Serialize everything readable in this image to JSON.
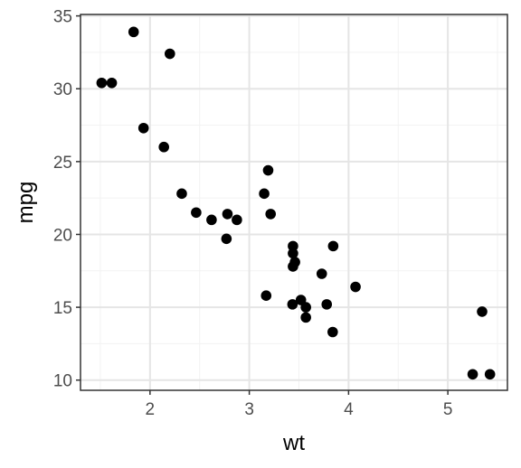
{
  "chart_data": {
    "type": "scatter",
    "xlabel": "wt",
    "ylabel": "mpg",
    "xlim": [
      1.3,
      5.6
    ],
    "ylim": [
      9.3,
      35.1
    ],
    "x_ticks": [
      2,
      3,
      4,
      5
    ],
    "y_ticks": [
      10,
      15,
      20,
      25,
      30,
      35
    ],
    "x_tick_labels": [
      "2",
      "3",
      "4",
      "5"
    ],
    "y_tick_labels": [
      "10",
      "15",
      "20",
      "25",
      "30",
      "35"
    ],
    "grid": true,
    "legend": "none",
    "colors": {
      "point": "#000000",
      "panel_border": "#333333",
      "grid_major": "#e5e5e5",
      "grid_minor": "#f2f2f2",
      "tick_text": "#4d4d4d",
      "axis_title": "#000000"
    },
    "points": [
      {
        "x": 2.62,
        "y": 21.0
      },
      {
        "x": 2.875,
        "y": 21.0
      },
      {
        "x": 2.32,
        "y": 22.8
      },
      {
        "x": 3.215,
        "y": 21.4
      },
      {
        "x": 3.44,
        "y": 18.7
      },
      {
        "x": 3.46,
        "y": 18.1
      },
      {
        "x": 3.57,
        "y": 14.3
      },
      {
        "x": 3.19,
        "y": 24.4
      },
      {
        "x": 3.15,
        "y": 22.8
      },
      {
        "x": 3.44,
        "y": 19.2
      },
      {
        "x": 3.44,
        "y": 17.8
      },
      {
        "x": 4.07,
        "y": 16.4
      },
      {
        "x": 3.73,
        "y": 17.3
      },
      {
        "x": 3.78,
        "y": 15.2
      },
      {
        "x": 5.25,
        "y": 10.4
      },
      {
        "x": 5.424,
        "y": 10.4
      },
      {
        "x": 5.345,
        "y": 14.7
      },
      {
        "x": 2.2,
        "y": 32.4
      },
      {
        "x": 1.615,
        "y": 30.4
      },
      {
        "x": 1.835,
        "y": 33.9
      },
      {
        "x": 2.465,
        "y": 21.5
      },
      {
        "x": 3.52,
        "y": 15.5
      },
      {
        "x": 3.435,
        "y": 15.2
      },
      {
        "x": 3.84,
        "y": 13.3
      },
      {
        "x": 3.845,
        "y": 19.2
      },
      {
        "x": 1.935,
        "y": 27.3
      },
      {
        "x": 2.14,
        "y": 26.0
      },
      {
        "x": 1.513,
        "y": 30.4
      },
      {
        "x": 3.17,
        "y": 15.8
      },
      {
        "x": 2.77,
        "y": 19.7
      },
      {
        "x": 3.57,
        "y": 15.0
      },
      {
        "x": 2.78,
        "y": 21.4
      }
    ]
  }
}
